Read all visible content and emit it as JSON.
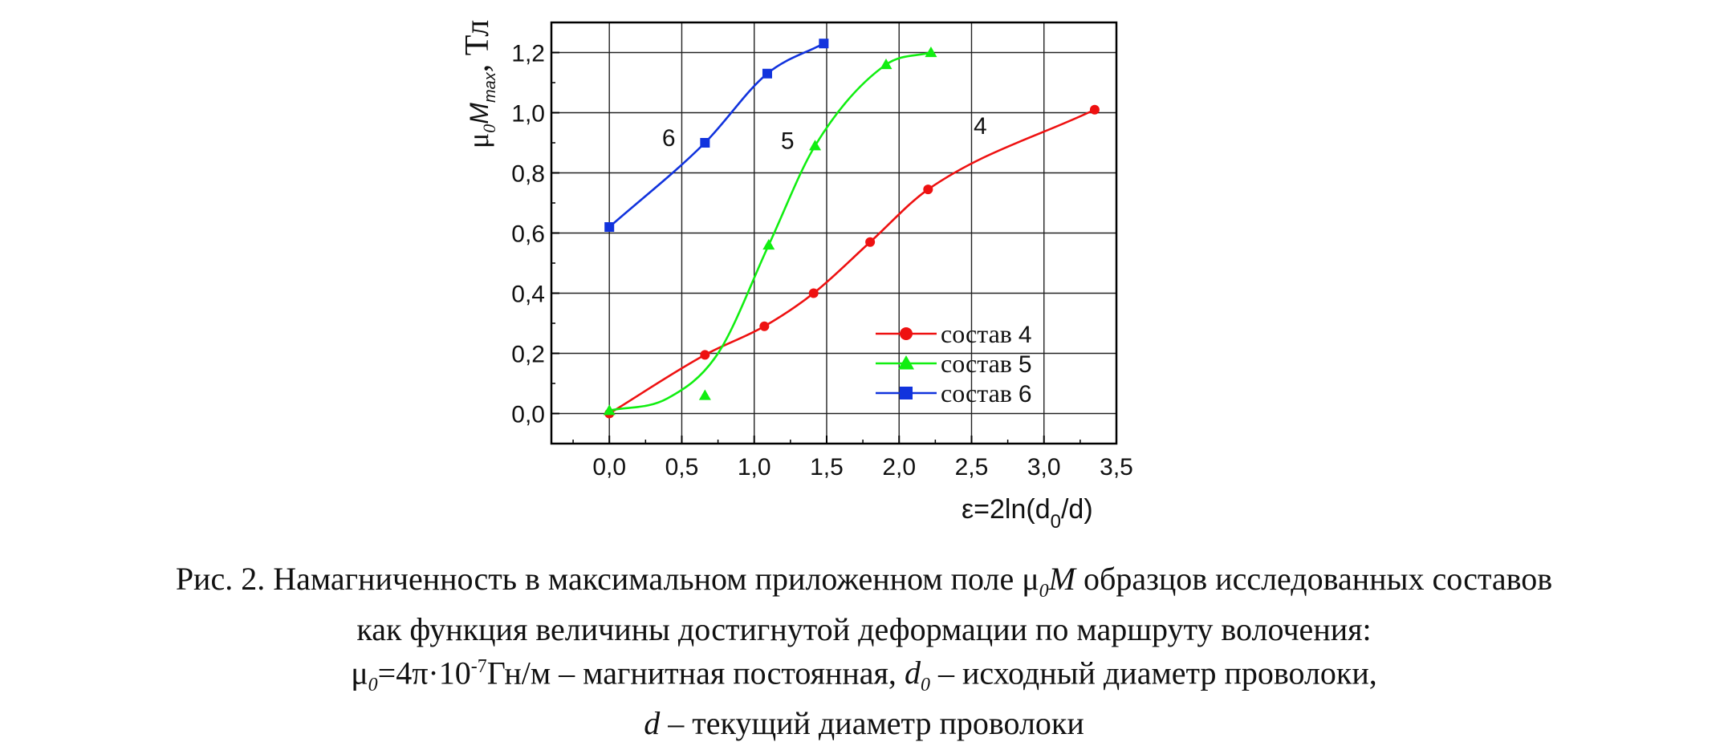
{
  "chart_data": {
    "type": "line",
    "xlabel_main": "ε=2ln(d",
    "xlabel_sub": "0",
    "xlabel_tail": "/d)",
    "ylabel_mu": "μ",
    "ylabel_mu_sub": "0",
    "ylabel_M": "M",
    "ylabel_M_sub": "max",
    "ylabel_unit": ", Тл",
    "xlim": [
      -0.4,
      3.5
    ],
    "ylim": [
      -0.1,
      1.3
    ],
    "xticks": [
      0.0,
      0.5,
      1.0,
      1.5,
      2.0,
      2.5,
      3.0,
      3.5
    ],
    "xtick_labels": [
      "0,0",
      "0,5",
      "1,0",
      "1,5",
      "2,0",
      "2,5",
      "3,0",
      "3,5"
    ],
    "yticks": [
      0.0,
      0.2,
      0.4,
      0.6,
      0.8,
      1.0,
      1.2
    ],
    "ytick_labels": [
      "0,0",
      "0,2",
      "0,4",
      "0,6",
      "0,8",
      "1,0",
      "1,2"
    ],
    "grid": true,
    "legend_position": "bottom-right",
    "series": [
      {
        "name": "состав",
        "number": "4",
        "curve_label": "4",
        "color": "#ee1111",
        "marker": "circle",
        "x": [
          0.0,
          0.66,
          1.07,
          1.41,
          1.8,
          2.2,
          3.35
        ],
        "y": [
          0.0,
          0.195,
          0.29,
          0.4,
          0.57,
          0.745,
          1.01
        ]
      },
      {
        "name": "состав",
        "number": "5",
        "curve_label": "5",
        "color": "#11ee11",
        "marker": "triangle",
        "x": [
          0.0,
          0.66,
          1.1,
          1.42,
          1.91,
          2.22
        ],
        "y": [
          0.01,
          0.06,
          0.56,
          0.89,
          1.16,
          1.2
        ]
      },
      {
        "name": "состав",
        "number": "6",
        "curve_label": "6",
        "color": "#1133dd",
        "marker": "square",
        "x": [
          0.0,
          0.66,
          1.09,
          1.48
        ],
        "y": [
          0.62,
          0.9,
          1.13,
          1.23
        ]
      }
    ]
  },
  "caption": {
    "line1_a": "Рис. 2. Намагниченность в максимальном приложенном поле μ",
    "line1_sub": "0",
    "line1_M": "M",
    "line1_b": " образцов исследованных составов",
    "line2": "как функция величины достигнутой деформации по маршруту волочения:",
    "line3_mu": "μ",
    "line3_mu_sub": "0",
    "line3_a": "=4π·10",
    "line3_sup": "-7",
    "line3_b": "Гн/м – магнитная постоянная, ",
    "line3_d": "d",
    "line3_d_sub": "0",
    "line3_c": " – исходный диаметр проволоки,",
    "line4_d": "d",
    "line4_a": " – текущий диаметр проволоки"
  }
}
